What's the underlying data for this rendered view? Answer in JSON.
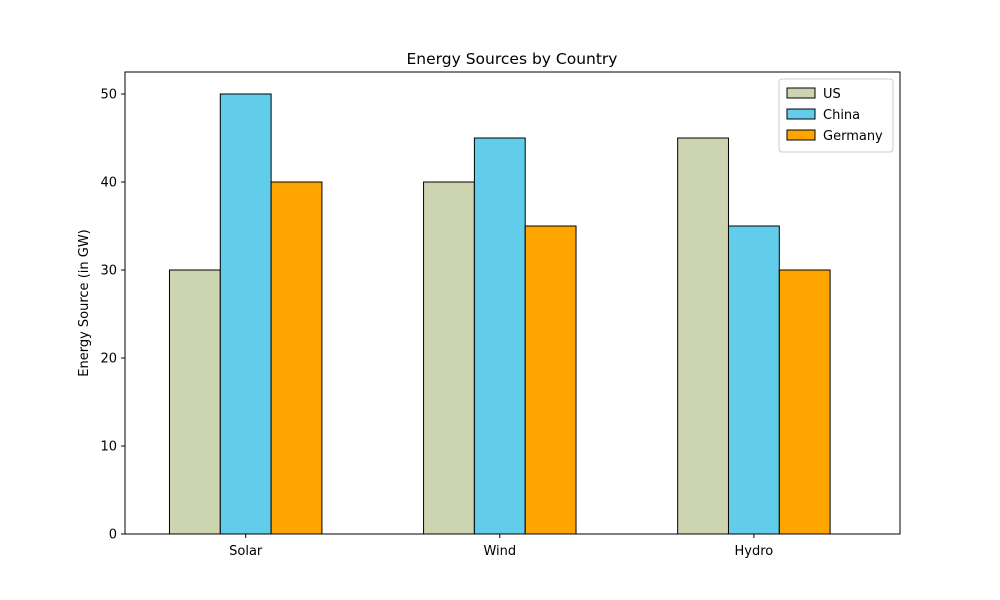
{
  "chart_data": {
    "type": "bar",
    "title": "Energy Sources by Country",
    "xlabel": "",
    "ylabel": "Energy Source (in GW)",
    "categories": [
      "Solar",
      "Wind",
      "Hydro"
    ],
    "series": [
      {
        "name": "US",
        "values": [
          30,
          40,
          45
        ],
        "color": "#cdd4b0"
      },
      {
        "name": "China",
        "values": [
          50,
          45,
          35
        ],
        "color": "#62cdeb"
      },
      {
        "name": "Germany",
        "values": [
          40,
          35,
          30
        ],
        "color": "#ffa500"
      }
    ],
    "ylim": [
      0,
      52.5
    ],
    "yticks": [
      0,
      10,
      20,
      30,
      40,
      50
    ],
    "grid": false,
    "legend_position": "top-right",
    "bar_edge_color": "#000000"
  }
}
